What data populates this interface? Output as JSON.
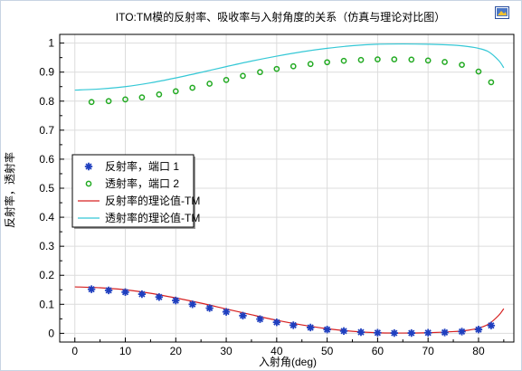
{
  "chart_data": {
    "type": "scatter",
    "title": "ITO:TM模的反射率、吸收率与入射角度的关系（仿真与理论对比图）",
    "xlabel": "入射角(deg)",
    "ylabel": "反射率，透射率",
    "xlim": [
      -3,
      87
    ],
    "ylim": [
      -0.03,
      1.03
    ],
    "x_ticks": [
      0,
      10,
      20,
      30,
      40,
      50,
      60,
      70,
      80
    ],
    "y_ticks": [
      0,
      0.1,
      0.2,
      0.3,
      0.4,
      0.5,
      0.6,
      0.7,
      0.8,
      0.9,
      1
    ],
    "y_tick_labels": [
      "0",
      "0.1",
      "0.2",
      "0.3",
      "0.4",
      "0.5",
      "0.6",
      "0.7",
      "0.8",
      "0.9",
      "1"
    ],
    "grid": true,
    "legend_position": "left-middle",
    "series": [
      {
        "name": "反射率，端口 1",
        "kind": "marker-star",
        "color": "#1f3fbf",
        "x": [
          3.3,
          6.7,
          10,
          13.3,
          16.7,
          20,
          23.3,
          26.7,
          30,
          33.3,
          36.7,
          40,
          43.3,
          46.7,
          50,
          53.3,
          56.7,
          60,
          63.3,
          66.7,
          70,
          73.3,
          76.7,
          80,
          82.5
        ],
        "y": [
          0.152,
          0.148,
          0.142,
          0.135,
          0.125,
          0.113,
          0.1,
          0.087,
          0.074,
          0.061,
          0.049,
          0.038,
          0.028,
          0.02,
          0.013,
          0.008,
          0.004,
          0.002,
          0.001,
          0.001,
          0.002,
          0.003,
          0.006,
          0.013,
          0.027
        ]
      },
      {
        "name": "透射率，端口 2",
        "kind": "marker-circle",
        "color": "#22aa22",
        "x": [
          3.3,
          6.7,
          10,
          13.3,
          16.7,
          20,
          23.3,
          26.7,
          30,
          33.3,
          36.7,
          40,
          43.3,
          46.7,
          50,
          53.3,
          56.7,
          60,
          63.3,
          66.7,
          70,
          73.3,
          76.7,
          80,
          82.5
        ],
        "y": [
          0.797,
          0.8,
          0.806,
          0.813,
          0.823,
          0.834,
          0.846,
          0.86,
          0.873,
          0.887,
          0.9,
          0.911,
          0.92,
          0.928,
          0.934,
          0.939,
          0.942,
          0.944,
          0.944,
          0.943,
          0.94,
          0.935,
          0.925,
          0.902,
          0.865
        ]
      },
      {
        "name": "反射率的理论值-TM",
        "kind": "line",
        "color": "#d62020",
        "x": [
          0,
          5,
          10,
          15,
          20,
          25,
          30,
          35,
          40,
          45,
          50,
          55,
          60,
          65,
          70,
          75,
          78,
          80,
          82,
          84,
          85
        ],
        "y": [
          0.16,
          0.157,
          0.15,
          0.138,
          0.122,
          0.104,
          0.084,
          0.064,
          0.045,
          0.029,
          0.016,
          0.007,
          0.002,
          0.001,
          0.002,
          0.006,
          0.011,
          0.018,
          0.032,
          0.062,
          0.085
        ]
      },
      {
        "name": "透射率的理论值-TM",
        "kind": "line",
        "color": "#35c8d6",
        "x": [
          0,
          5,
          10,
          15,
          20,
          25,
          30,
          35,
          40,
          45,
          50,
          55,
          60,
          65,
          70,
          75,
          78,
          80,
          82,
          84,
          85
        ],
        "y": [
          0.838,
          0.842,
          0.85,
          0.863,
          0.88,
          0.899,
          0.919,
          0.938,
          0.955,
          0.97,
          0.982,
          0.991,
          0.996,
          0.997,
          0.996,
          0.993,
          0.988,
          0.982,
          0.97,
          0.94,
          0.915
        ]
      }
    ]
  },
  "toolbar": {
    "export_icon": "image-export-icon"
  }
}
